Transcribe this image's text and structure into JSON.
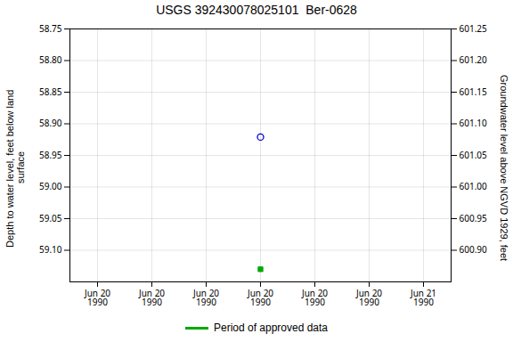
{
  "chart_data": {
    "type": "scatter",
    "title": "USGS 392430078025101  Ber-0628",
    "ylabel": "Depth to water level, feet below land\n surface",
    "y2label": "Groundwater level above NGVD 1929, feet",
    "categories": [
      "Jun 20\n1990",
      "Jun 20\n1990",
      "Jun 20\n1990",
      "Jun 20\n1990",
      "Jun 20\n1990",
      "Jun 20\n1990",
      "Jun 21\n1990"
    ],
    "series": [
      {
        "values": [
          null,
          null,
          null,
          58.921,
          null,
          null,
          null
        ],
        "color": "#0000cc",
        "marker": "circle"
      },
      {
        "name": "Period of approved data",
        "values": [
          null,
          null,
          null,
          59.13,
          null,
          null,
          null
        ],
        "color": "#00aa00",
        "marker": "square"
      }
    ],
    "ylim": [
      59.15,
      58.75
    ],
    "yticks": [
      58.75,
      {
        "value": 58.8,
        "label": "58.80"
      },
      58.85,
      {
        "value": 58.9,
        "label": "58.90"
      },
      58.95,
      {
        "value": 59.0,
        "label": "59.00"
      },
      59.05,
      {
        "value": 59.1,
        "label": "59.10"
      }
    ],
    "y2lim": [
      600.85,
      601.25
    ],
    "y2ticks": [
      601.25,
      {
        "value": 601.2,
        "label": "601.20"
      },
      601.15,
      {
        "value": 601.1,
        "label": "601.10"
      },
      601.05,
      {
        "value": 601.0,
        "label": "601.00"
      },
      600.95,
      {
        "value": 600.9,
        "label": "600.90"
      }
    ],
    "grid": true,
    "legend": "bottom"
  }
}
